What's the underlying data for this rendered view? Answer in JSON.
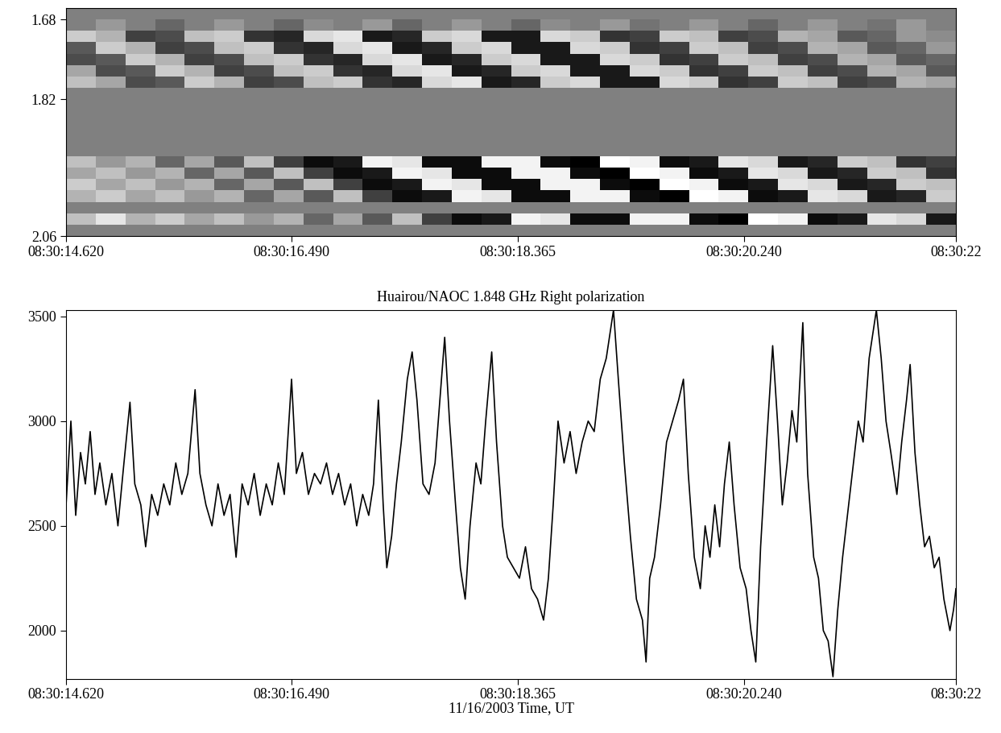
{
  "chart_data": [
    {
      "type": "heatmap",
      "xlim": [
        14.62,
        22.0
      ],
      "xticks": [
        {
          "value": 14.62,
          "label": "08:30:14.620"
        },
        {
          "value": 16.49,
          "label": "08:30:16.490"
        },
        {
          "value": 18.365,
          "label": "08:30:18.365"
        },
        {
          "value": 20.24,
          "label": "08:30:20.240"
        },
        {
          "value": 22.0,
          "label": "08:30:22"
        }
      ],
      "ylim": [
        2.06,
        1.66
      ],
      "yticks": [
        1.68,
        1.82,
        2.06
      ],
      "value_range": [
        -1,
        1
      ],
      "x_edges": [
        14.62,
        14.866,
        15.112,
        15.358,
        15.604,
        15.85,
        16.096,
        16.342,
        16.588,
        16.834,
        17.08,
        17.326,
        17.572,
        17.818,
        18.064,
        18.31,
        18.556,
        18.802,
        19.048,
        19.294,
        19.54,
        19.786,
        20.032,
        20.278,
        20.524,
        20.77,
        21.016,
        21.262,
        21.508,
        21.754,
        22.0
      ],
      "y_edges": [
        1.66,
        1.68,
        1.7,
        1.72,
        1.74,
        1.76,
        1.78,
        1.8,
        1.82,
        1.84,
        1.86,
        1.88,
        1.9,
        1.92,
        1.94,
        1.96,
        1.98,
        2.0,
        2.02,
        2.04,
        2.06
      ],
      "cells": [
        [
          0,
          0,
          0,
          0,
          0,
          0,
          0,
          0,
          0,
          0,
          0,
          0,
          0,
          0,
          0,
          0,
          0,
          0,
          0,
          0,
          0,
          0,
          0,
          0,
          0,
          0,
          0,
          0,
          0,
          0
        ],
        [
          0,
          0.2,
          0,
          -0.2,
          0,
          0.2,
          0,
          -0.2,
          0.1,
          0,
          0.2,
          -0.2,
          0,
          0.2,
          0,
          -0.2,
          0.1,
          0,
          0.2,
          -0.1,
          0,
          0.2,
          0,
          -0.2,
          0,
          0.2,
          0,
          -0.1,
          0.2,
          0
        ],
        [
          0.6,
          0.4,
          -0.5,
          -0.4,
          0.5,
          0.6,
          -0.6,
          -0.7,
          0.7,
          0.8,
          -0.8,
          -0.7,
          0.6,
          0.7,
          -0.8,
          -0.8,
          0.7,
          0.6,
          -0.6,
          -0.5,
          0.6,
          0.5,
          -0.5,
          -0.4,
          0.4,
          0.3,
          -0.3,
          -0.2,
          0.2,
          0.1
        ],
        [
          -0.3,
          0.6,
          0.4,
          -0.5,
          -0.4,
          0.5,
          0.6,
          -0.6,
          -0.7,
          0.7,
          0.8,
          -0.8,
          -0.7,
          0.6,
          0.7,
          -0.8,
          -0.8,
          0.7,
          0.6,
          -0.6,
          -0.5,
          0.6,
          0.5,
          -0.5,
          -0.4,
          0.4,
          0.3,
          -0.3,
          -0.2,
          0.2
        ],
        [
          -0.4,
          -0.3,
          0.6,
          0.4,
          -0.5,
          -0.4,
          0.5,
          0.6,
          -0.6,
          -0.7,
          0.7,
          0.8,
          -0.8,
          -0.7,
          0.6,
          0.7,
          -0.8,
          -0.8,
          0.7,
          0.6,
          -0.6,
          -0.5,
          0.6,
          0.5,
          -0.5,
          -0.4,
          0.4,
          0.3,
          -0.3,
          -0.2
        ],
        [
          0.3,
          -0.4,
          -0.3,
          0.6,
          0.4,
          -0.5,
          -0.4,
          0.5,
          0.6,
          -0.6,
          -0.7,
          0.7,
          0.8,
          -0.8,
          -0.7,
          0.6,
          0.7,
          -0.8,
          -0.8,
          0.7,
          0.6,
          -0.6,
          -0.5,
          0.6,
          0.5,
          -0.5,
          -0.4,
          0.4,
          0.3,
          -0.3
        ],
        [
          0.5,
          0.3,
          -0.4,
          -0.3,
          0.6,
          0.4,
          -0.5,
          -0.4,
          0.5,
          0.6,
          -0.6,
          -0.7,
          0.7,
          0.8,
          -0.8,
          -0.7,
          0.6,
          0.7,
          -0.8,
          -0.8,
          0.7,
          0.6,
          -0.6,
          -0.5,
          0.6,
          0.5,
          -0.5,
          -0.4,
          0.4,
          0.3
        ],
        [
          0,
          0,
          0,
          0,
          0,
          0,
          0,
          0,
          0,
          0,
          0,
          0,
          0,
          0,
          0,
          0,
          0,
          0,
          0,
          0,
          0,
          0,
          0,
          0,
          0,
          0,
          0,
          0,
          0,
          0
        ],
        [
          0,
          0,
          0,
          0,
          0,
          0,
          0,
          0,
          0,
          0,
          0,
          0,
          0,
          0,
          0,
          0,
          0,
          0,
          0,
          0,
          0,
          0,
          0,
          0,
          0,
          0,
          0,
          0,
          0,
          0
        ],
        [
          0,
          0,
          0,
          0,
          0,
          0,
          0,
          0,
          0,
          0,
          0,
          0,
          0,
          0,
          0,
          0,
          0,
          0,
          0,
          0,
          0,
          0,
          0,
          0,
          0,
          0,
          0,
          0,
          0,
          0
        ],
        [
          0,
          0,
          0,
          0,
          0,
          0,
          0,
          0,
          0,
          0,
          0,
          0,
          0,
          0,
          0,
          0,
          0,
          0,
          0,
          0,
          0,
          0,
          0,
          0,
          0,
          0,
          0,
          0,
          0,
          0
        ],
        [
          0,
          0,
          0,
          0,
          0,
          0,
          0,
          0,
          0,
          0,
          0,
          0,
          0,
          0,
          0,
          0,
          0,
          0,
          0,
          0,
          0,
          0,
          0,
          0,
          0,
          0,
          0,
          0,
          0,
          0
        ],
        [
          0,
          0,
          0,
          0,
          0,
          0,
          0,
          0,
          0,
          0,
          0,
          0,
          0,
          0,
          0,
          0,
          0,
          0,
          0,
          0,
          0,
          0,
          0,
          0,
          0,
          0,
          0,
          0,
          0,
          0
        ],
        [
          0.5,
          0.2,
          0.4,
          -0.2,
          0.3,
          -0.3,
          0.5,
          -0.5,
          -0.9,
          -0.8,
          0.9,
          0.8,
          -0.9,
          -0.9,
          0.9,
          0.9,
          -0.9,
          -1.0,
          1.0,
          0.9,
          -0.9,
          -0.8,
          0.8,
          0.7,
          -0.8,
          -0.7,
          0.6,
          0.5,
          -0.6,
          -0.5
        ],
        [
          0.3,
          0.5,
          0.2,
          0.4,
          -0.2,
          0.3,
          -0.3,
          0.5,
          -0.5,
          -0.9,
          -0.8,
          0.9,
          0.8,
          -0.9,
          -0.9,
          0.9,
          0.9,
          -0.9,
          -1.0,
          1.0,
          0.9,
          -0.9,
          -0.8,
          0.8,
          0.7,
          -0.8,
          -0.7,
          0.6,
          0.5,
          -0.6
        ],
        [
          0.6,
          0.3,
          0.5,
          0.2,
          0.4,
          -0.2,
          0.3,
          -0.3,
          0.5,
          -0.5,
          -0.9,
          -0.8,
          0.9,
          0.8,
          -0.9,
          -0.9,
          0.9,
          0.9,
          -0.9,
          -1.0,
          1.0,
          0.9,
          -0.9,
          -0.8,
          0.8,
          0.7,
          -0.8,
          -0.7,
          0.6,
          0.5
        ],
        [
          0.4,
          0.6,
          0.3,
          0.5,
          0.2,
          0.4,
          -0.2,
          0.3,
          -0.3,
          0.5,
          -0.5,
          -0.9,
          -0.8,
          0.9,
          0.8,
          -0.9,
          -0.9,
          0.9,
          0.9,
          -0.9,
          -1.0,
          1.0,
          0.9,
          -0.9,
          -0.8,
          0.8,
          0.7,
          -0.8,
          -0.7,
          0.6
        ],
        [
          0,
          0,
          0,
          0,
          0,
          0,
          0,
          0,
          0,
          0,
          0,
          0,
          0,
          0,
          0,
          0,
          0,
          0,
          0,
          0,
          0,
          0,
          0,
          0,
          0,
          0,
          0,
          0,
          0,
          0
        ],
        [
          0.5,
          0.8,
          0.4,
          0.6,
          0.3,
          0.5,
          0.2,
          0.4,
          -0.2,
          0.3,
          -0.3,
          0.5,
          -0.5,
          -0.9,
          -0.8,
          0.9,
          0.8,
          -0.9,
          -0.9,
          0.9,
          0.9,
          -0.9,
          -1.0,
          1.0,
          0.9,
          -0.9,
          -0.8,
          0.8,
          0.7,
          -0.8
        ],
        [
          0,
          0,
          0,
          0,
          0,
          0,
          0,
          0,
          0,
          0,
          0,
          0,
          0,
          0,
          0,
          0,
          0,
          0,
          0,
          0,
          0,
          0,
          0,
          0,
          0,
          0,
          0,
          0,
          0,
          0
        ]
      ]
    },
    {
      "type": "line",
      "title": "Huairou/NAOC 1.848 GHz Right polarization",
      "x_label": "11/16/2003 Time, UT",
      "color": "#000000",
      "xlim": [
        14.62,
        22.0
      ],
      "xticks": [
        {
          "value": 14.62,
          "label": "08:30:14.620"
        },
        {
          "value": 16.49,
          "label": "08:30:16.490"
        },
        {
          "value": 18.365,
          "label": "08:30:18.365"
        },
        {
          "value": 20.24,
          "label": "08:30:20.240"
        },
        {
          "value": 22.0,
          "label": "08:30:22"
        }
      ],
      "ylim": [
        1770,
        3530
      ],
      "yticks": [
        2000,
        2500,
        3000,
        3500
      ],
      "x": [
        14.62,
        14.66,
        14.7,
        14.74,
        14.78,
        14.82,
        14.86,
        14.9,
        14.95,
        15.0,
        15.05,
        15.1,
        15.15,
        15.19,
        15.24,
        15.28,
        15.33,
        15.38,
        15.43,
        15.48,
        15.53,
        15.58,
        15.63,
        15.69,
        15.73,
        15.78,
        15.83,
        15.88,
        15.93,
        15.98,
        16.03,
        16.08,
        16.13,
        16.18,
        16.23,
        16.28,
        16.33,
        16.38,
        16.43,
        16.49,
        16.53,
        16.58,
        16.63,
        16.68,
        16.73,
        16.78,
        16.83,
        16.88,
        16.93,
        16.98,
        17.03,
        17.08,
        17.13,
        17.17,
        17.21,
        17.25,
        17.28,
        17.32,
        17.36,
        17.4,
        17.45,
        17.49,
        17.53,
        17.58,
        17.63,
        17.68,
        17.72,
        17.76,
        17.8,
        17.85,
        17.89,
        17.93,
        17.97,
        18.02,
        18.06,
        18.1,
        18.15,
        18.19,
        18.24,
        18.28,
        18.33,
        18.38,
        18.43,
        18.48,
        18.53,
        18.58,
        18.62,
        18.66,
        18.7,
        18.75,
        18.8,
        18.85,
        18.9,
        18.95,
        19.0,
        19.05,
        19.1,
        19.16,
        19.2,
        19.25,
        19.3,
        19.35,
        19.4,
        19.43,
        19.46,
        19.5,
        19.55,
        19.6,
        19.65,
        19.7,
        19.74,
        19.78,
        19.83,
        19.88,
        19.92,
        19.96,
        20.0,
        20.04,
        20.08,
        20.12,
        20.16,
        20.21,
        20.26,
        20.3,
        20.34,
        20.38,
        20.43,
        20.48,
        20.52,
        20.56,
        20.6,
        20.64,
        20.68,
        20.73,
        20.77,
        20.82,
        20.86,
        20.9,
        20.94,
        20.98,
        21.02,
        21.06,
        21.1,
        21.15,
        21.19,
        21.23,
        21.28,
        21.34,
        21.38,
        21.42,
        21.46,
        21.51,
        21.55,
        21.59,
        21.62,
        21.66,
        21.7,
        21.74,
        21.78,
        21.82,
        21.86,
        21.9,
        21.95,
        21.98,
        22.0
      ],
      "values": [
        2600,
        3000,
        2550,
        2850,
        2700,
        2950,
        2650,
        2800,
        2600,
        2750,
        2500,
        2800,
        3090,
        2700,
        2600,
        2400,
        2650,
        2550,
        2700,
        2600,
        2800,
        2650,
        2750,
        3150,
        2750,
        2600,
        2500,
        2700,
        2550,
        2650,
        2350,
        2700,
        2600,
        2750,
        2550,
        2700,
        2600,
        2800,
        2650,
        3200,
        2750,
        2850,
        2650,
        2750,
        2700,
        2800,
        2650,
        2750,
        2600,
        2700,
        2500,
        2650,
        2550,
        2700,
        3100,
        2600,
        2300,
        2450,
        2700,
        2900,
        3200,
        3330,
        3100,
        2700,
        2650,
        2800,
        3100,
        3400,
        3000,
        2600,
        2300,
        2150,
        2500,
        2800,
        2700,
        3000,
        3330,
        2900,
        2500,
        2350,
        2300,
        2250,
        2400,
        2200,
        2150,
        2050,
        2250,
        2600,
        3000,
        2800,
        2950,
        2750,
        2900,
        3000,
        2950,
        3200,
        3300,
        3530,
        3200,
        2800,
        2450,
        2150,
        2050,
        1850,
        2250,
        2350,
        2600,
        2900,
        3000,
        3100,
        3200,
        2750,
        2350,
        2200,
        2500,
        2350,
        2600,
        2400,
        2700,
        2900,
        2600,
        2300,
        2200,
        2000,
        1850,
        2400,
        2900,
        3360,
        3000,
        2600,
        2800,
        3050,
        2900,
        3470,
        2750,
        2350,
        2250,
        2000,
        1950,
        1780,
        2100,
        2350,
        2550,
        2800,
        3000,
        2900,
        3300,
        3530,
        3300,
        3000,
        2850,
        2650,
        2900,
        3100,
        3270,
        2850,
        2600,
        2400,
        2450,
        2300,
        2350,
        2150,
        2000,
        2100,
        2200
      ]
    }
  ]
}
